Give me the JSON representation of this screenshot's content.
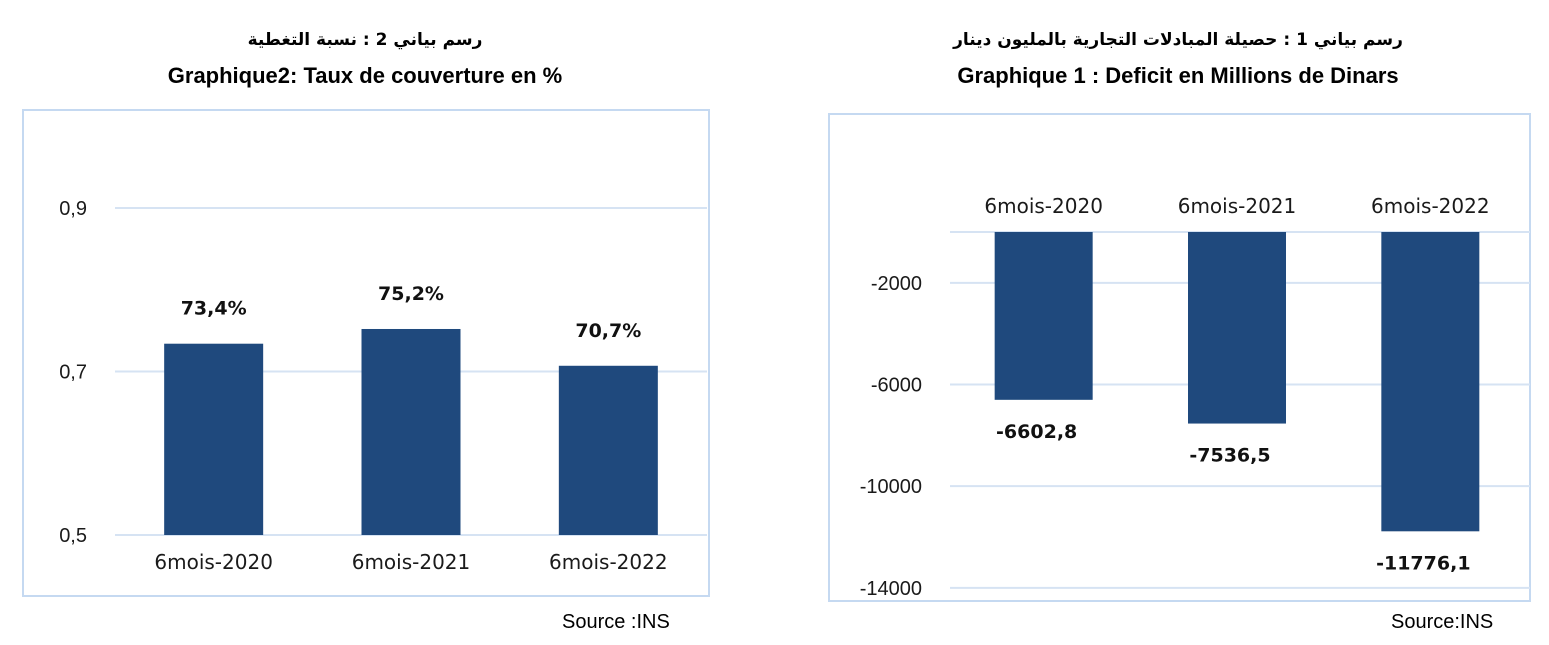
{
  "source_left": "Source :INS",
  "source_right": "Source:INS",
  "chart_data": [
    {
      "type": "bar",
      "title_ar": "رسم بياني 2 : نسبة التغطية",
      "title": "Graphique2: Taux de couverture en %",
      "categories": [
        "6mois-2020",
        "6mois-2021",
        "6mois-2022"
      ],
      "values": [
        0.734,
        0.752,
        0.707
      ],
      "data_labels": [
        "73,4%",
        "75,2%",
        "70,7%"
      ],
      "ylim": [
        0.5,
        0.98
      ],
      "yticks": [
        0.5,
        0.7,
        0.9
      ],
      "ytick_labels": [
        "0,5",
        "0,7",
        "0,9"
      ],
      "grid": true,
      "bar_color": "#1F497D"
    },
    {
      "type": "bar",
      "title_ar": "رسم بياني 1 : حصيلة المبادلات التجارية بالمليون دينار",
      "title": "Graphique 1 : Deficit en Millions de Dinars",
      "categories": [
        "6mois-2020",
        "6mois-2021",
        "6mois-2022"
      ],
      "values": [
        -6602.8,
        -7536.5,
        -11776.1
      ],
      "data_labels": [
        "-6602,8",
        "-7536,5",
        "-11776,1"
      ],
      "ylim": [
        -14000,
        0
      ],
      "yticks": [
        -2000,
        -6000,
        -10000,
        -14000
      ],
      "ytick_labels": [
        "-2000",
        "-6000",
        "-10000",
        "-14000"
      ],
      "category_axis_position": "top",
      "grid": true,
      "bar_color": "#1F497D"
    }
  ]
}
